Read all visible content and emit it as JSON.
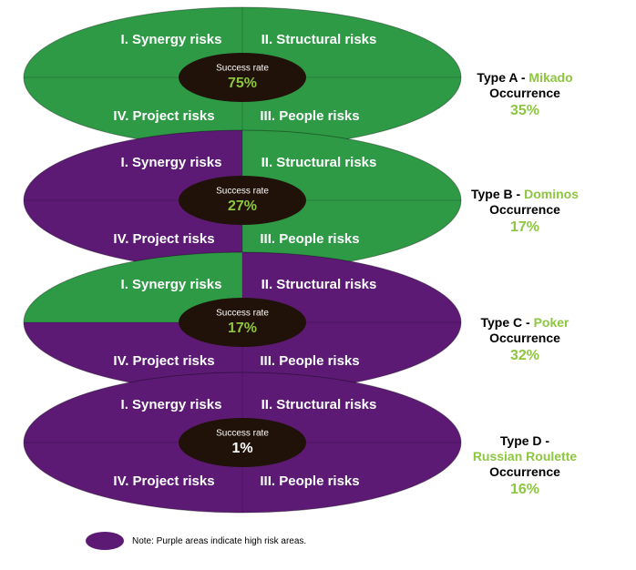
{
  "colors": {
    "green": "#2e9a46",
    "purple": "#5c1a74",
    "center": "#201208",
    "accent": "#8dc63f"
  },
  "quadrant_labels": {
    "q1": "I. Synergy risks",
    "q2": "II. Structural risks",
    "q3": "III. People risks",
    "q4": "IV. Project risks"
  },
  "success_label": "Success rate",
  "scenarios": [
    {
      "type_label": "Type A -",
      "type_name": "Mikado",
      "occurrence_label": "Occurrence",
      "occurrence": "35%",
      "success_rate": "75%",
      "quadrants": {
        "q1": "green",
        "q2": "green",
        "q3": "green",
        "q4": "green"
      },
      "success_color": "#8dc63f"
    },
    {
      "type_label": "Type B -",
      "type_name": "Dominos",
      "occurrence_label": "Occurrence",
      "occurrence": "17%",
      "success_rate": "27%",
      "quadrants": {
        "q1": "purple",
        "q2": "green",
        "q3": "green",
        "q4": "purple"
      },
      "success_color": "#8dc63f"
    },
    {
      "type_label": "Type C -",
      "type_name": "Poker",
      "occurrence_label": "Occurrence",
      "occurrence": "32%",
      "success_rate": "17%",
      "quadrants": {
        "q1": "green",
        "q2": "purple",
        "q3": "purple",
        "q4": "purple"
      },
      "success_color": "#8dc63f"
    },
    {
      "type_label": "Type D -",
      "type_name": "Russian Roulette",
      "occurrence_label": "Occurrence",
      "occurrence": "16%",
      "success_rate": "1%",
      "quadrants": {
        "q1": "purple",
        "q2": "purple",
        "q3": "purple",
        "q4": "purple"
      },
      "success_color": "#ffffff"
    }
  ],
  "note": "Note: Purple areas indicate high risk areas."
}
